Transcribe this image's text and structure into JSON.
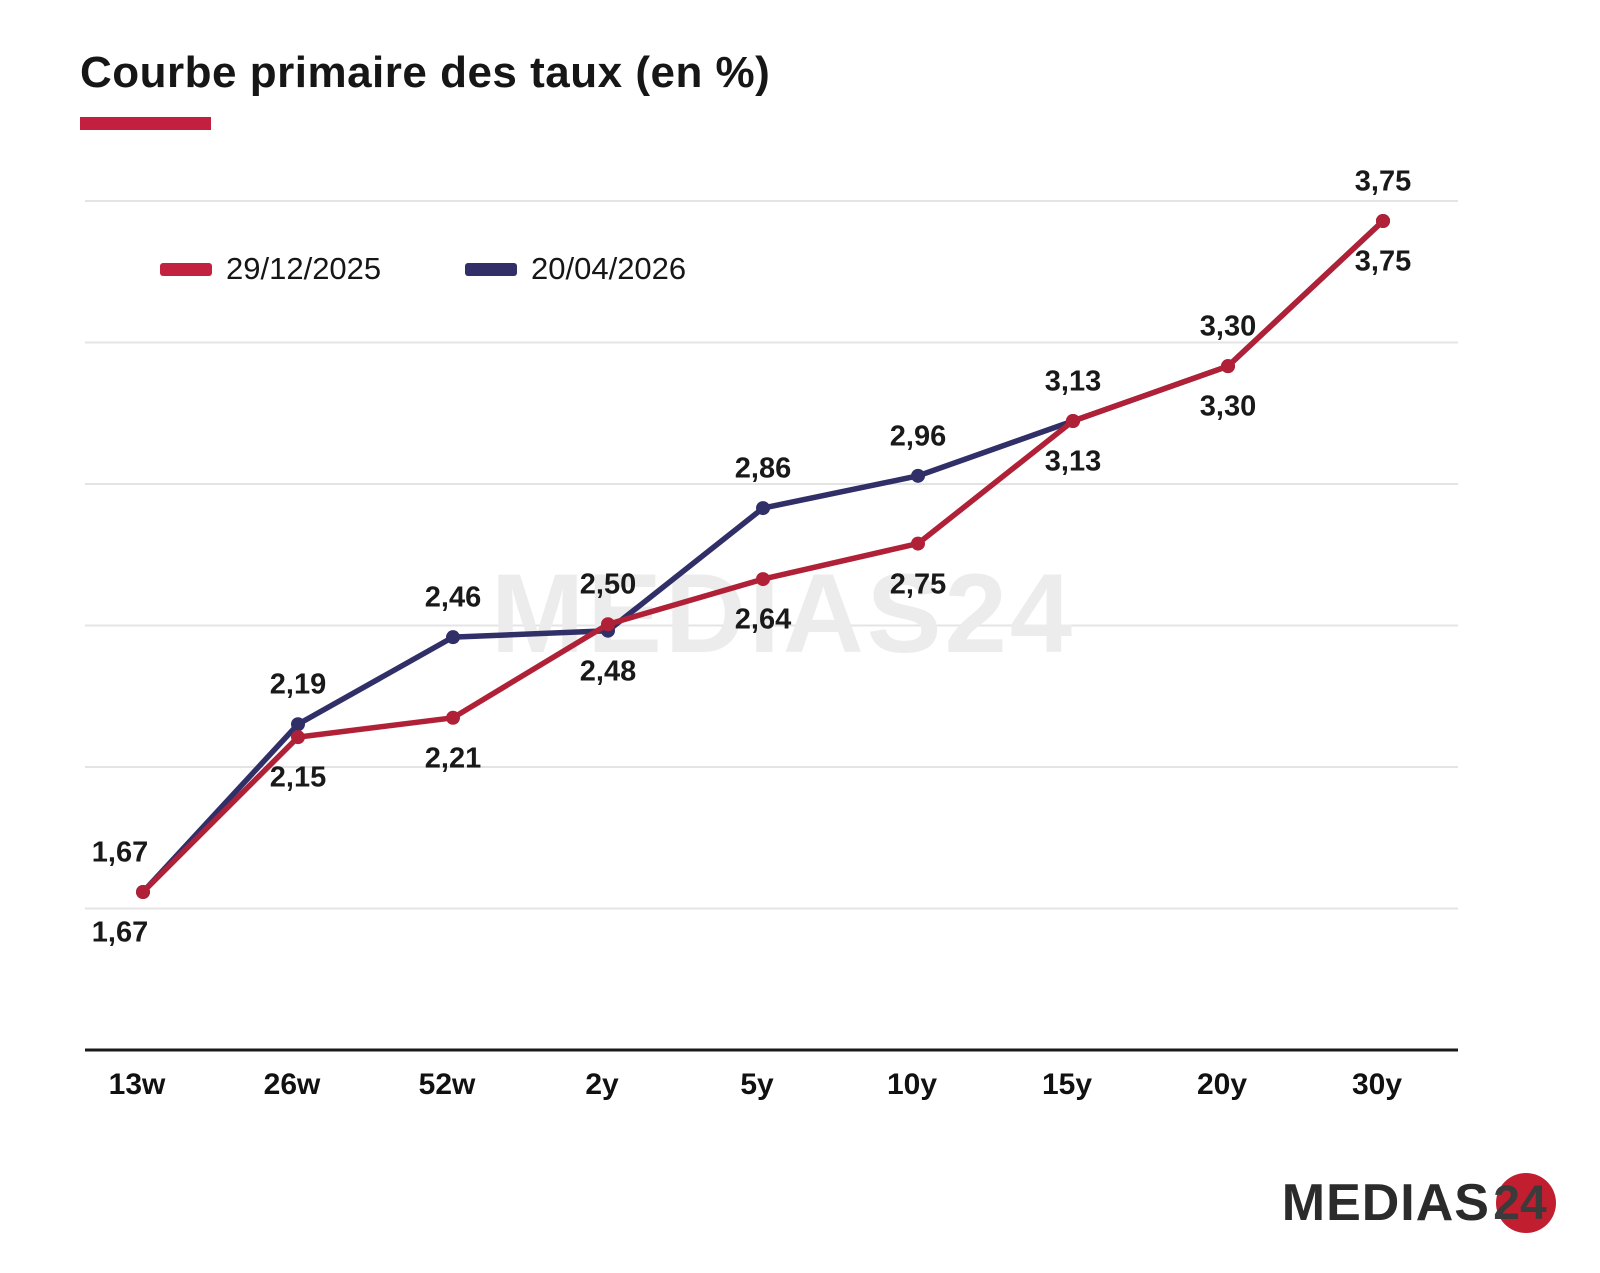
{
  "title": {
    "text": "Courbe primaire des taux (en %)"
  },
  "accent_color": "#c2203e",
  "watermark": {
    "text": "MEDIAS24"
  },
  "legend": {
    "items": [
      {
        "label": "29/12/2025",
        "color": "#b02138"
      },
      {
        "label": "20/04/2026",
        "color": "#312f68"
      }
    ]
  },
  "chart_data": {
    "type": "line",
    "title": "Courbe primaire des taux (en %)",
    "categories": [
      "13w",
      "26w",
      "52w",
      "2y",
      "5y",
      "10y",
      "15y",
      "20y",
      "30y"
    ],
    "series": [
      {
        "name": "29/12/2025",
        "color": "#b02138",
        "values": [
          1.67,
          2.15,
          2.21,
          2.5,
          2.64,
          2.75,
          3.13,
          3.3,
          3.75
        ],
        "labels": [
          "1,67",
          "2,15",
          "2,21",
          "2,50",
          "2,64",
          "2,75",
          "3,13",
          "3,30",
          "3,75"
        ]
      },
      {
        "name": "20/04/2026",
        "color": "#312f68",
        "values": [
          1.67,
          2.19,
          2.46,
          2.48,
          2.86,
          2.96,
          3.13,
          3.3,
          3.75
        ],
        "labels": [
          "1,67",
          "2,19",
          "2,46",
          "2,48",
          "2,86",
          "2,96",
          "3,13",
          "3,30",
          "3,75"
        ]
      }
    ],
    "xlabel": "",
    "ylabel": "",
    "ylim": [
      1.45,
      4.0
    ],
    "grid": true,
    "gridline_color": "#e4e4e4",
    "axis_color": "#1a1a1a",
    "legend_position": "top-left",
    "value_format": "comma-decimal",
    "value_labels_shown": true
  },
  "logo": {
    "wordmark": "MEDIAS",
    "badge": "24",
    "badge_color": "#c11f30"
  }
}
